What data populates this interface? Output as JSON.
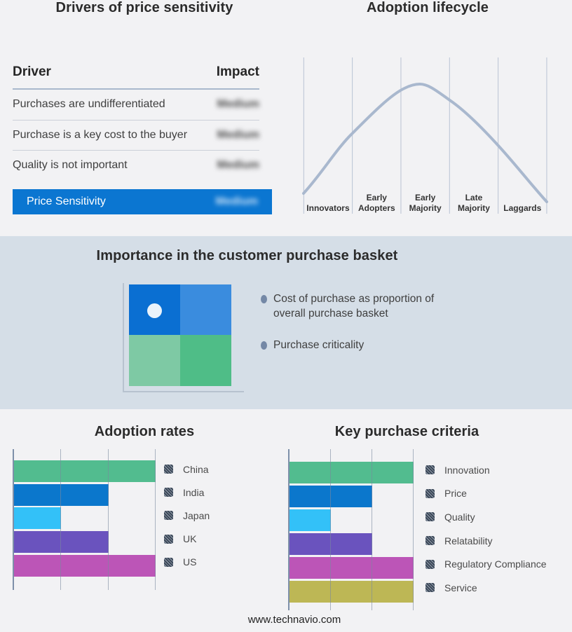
{
  "page": {
    "background": "#F2F2F4",
    "band_background": "#D5DEE7",
    "footer": "www.technavio.com"
  },
  "drivers_panel": {
    "title": "Drivers of price sensitivity",
    "table": {
      "columns": [
        "Driver",
        "Impact"
      ],
      "rows": [
        {
          "driver": "Purchases are undifferentiated",
          "impact": "Medium",
          "impact_blurred": true
        },
        {
          "driver": "Purchase is a key cost to the buyer",
          "impact": "Medium",
          "impact_blurred": true
        },
        {
          "driver": "Quality is not important",
          "impact": "Medium",
          "impact_blurred": true
        }
      ],
      "highlight_row": {
        "driver": "Price Sensitivity",
        "impact": "Medium",
        "impact_blurred": true,
        "background": "#0B76D1",
        "text_color": "#FFFFFF"
      }
    }
  },
  "lifecycle_panel": {
    "title": "Adoption lifecycle",
    "labels": [
      "Innovators",
      "Early\nAdopters",
      "Early\nMajority",
      "Late\nMajority",
      "Laggards"
    ],
    "curve_color": "#A9B8CE",
    "gridline_color": "#B9C3D4"
  },
  "basket_band": {
    "title": "Importance in the customer purchase basket",
    "bullets": [
      "Cost of purchase as proportion of overall purchase basket",
      "Purchase criticality"
    ],
    "quadrant": {
      "top_left": "#0A6FD2",
      "top_right": "#3A8CDE",
      "bottom_left": "#7EC9A4",
      "bottom_right": "#4FBD87",
      "dot": "#EAF3FB"
    }
  },
  "chart_data": [
    {
      "type": "bar",
      "orientation": "horizontal",
      "title": "Adoption rates",
      "categories": [
        "China",
        "India",
        "Japan",
        "UK",
        "US"
      ],
      "values": [
        3,
        2,
        1,
        2,
        3
      ],
      "xlim": [
        0,
        3
      ],
      "grid": true,
      "legend_position": "right",
      "colors": [
        "#52BC8F",
        "#0B77CC",
        "#33C1F8",
        "#6A53BE",
        "#BC55B7"
      ]
    },
    {
      "type": "bar",
      "orientation": "horizontal",
      "title": "Key purchase criteria",
      "categories": [
        "Innovation",
        "Price",
        "Quality",
        "Relatability",
        "Regulatory Compliance",
        "Service"
      ],
      "values": [
        3,
        2,
        1,
        2,
        3,
        3
      ],
      "xlim": [
        0,
        3
      ],
      "grid": true,
      "legend_position": "right",
      "colors": [
        "#52BC8F",
        "#0B77CC",
        "#33C1F8",
        "#6A53BE",
        "#BC55B7",
        "#BDB755"
      ]
    }
  ]
}
